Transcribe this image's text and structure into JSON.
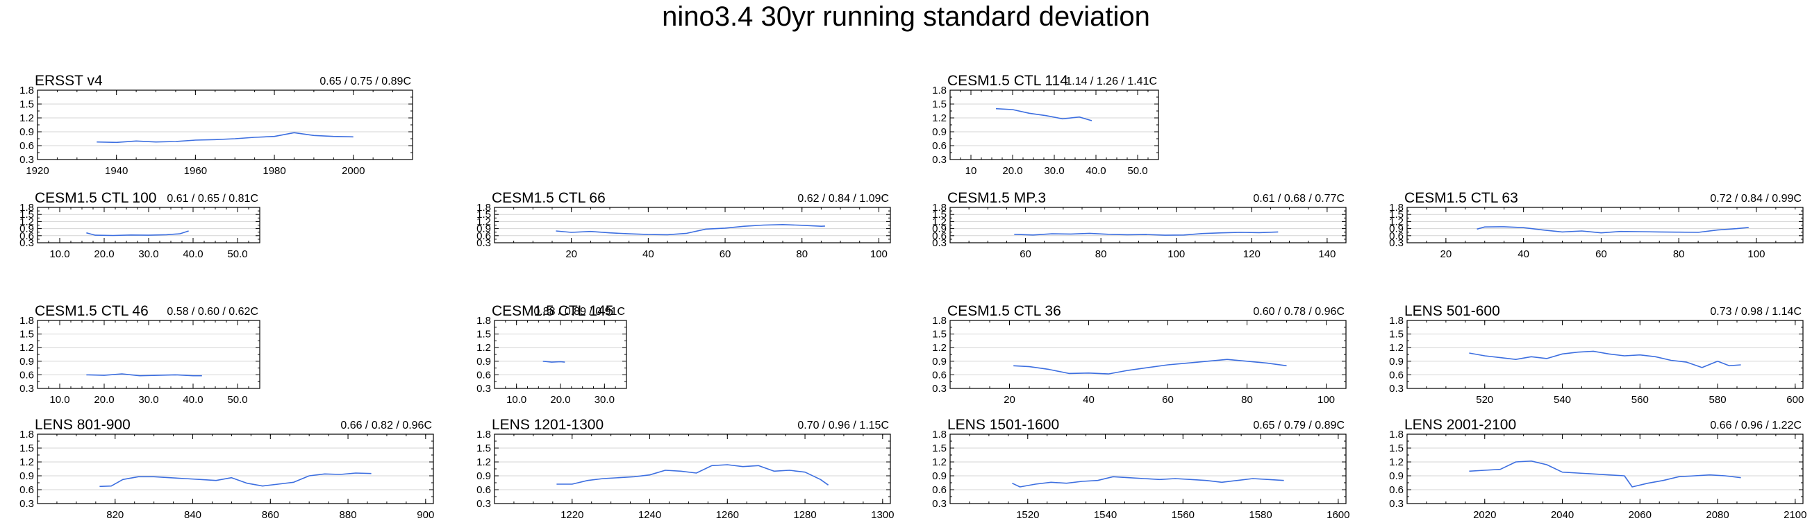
{
  "figure_title": "nino3.4 30yr running standard deviation",
  "colors": {
    "line": "#3d6fe0",
    "axis": "#000000",
    "grid": "#d4d4d4"
  },
  "chart_data": [
    {
      "type": "line",
      "title": "ERSST v4",
      "stats": "0.65 / 0.75 / 0.89C",
      "xlim": [
        1920,
        2015
      ],
      "xticks": [
        1920,
        1940,
        1960,
        1980,
        2000
      ],
      "xtick_labels": [
        "1920",
        "1940",
        "1960",
        "1980",
        "2000"
      ],
      "ylim": [
        0.3,
        1.8
      ],
      "yticks": [
        0.3,
        0.6,
        0.9,
        1.2,
        1.5,
        1.8
      ],
      "ytick_labels": [
        "0.3",
        "0.6",
        "0.9",
        "1.2",
        "1.5",
        "1.8"
      ],
      "x": [
        1935,
        1940,
        1945,
        1950,
        1955,
        1960,
        1965,
        1970,
        1975,
        1980,
        1985,
        1990,
        1995,
        2000
      ],
      "y": [
        0.68,
        0.67,
        0.7,
        0.68,
        0.69,
        0.72,
        0.73,
        0.75,
        0.78,
        0.8,
        0.88,
        0.82,
        0.8,
        0.79
      ]
    },
    {
      "type": "line",
      "title": "CESM1.5 CTL 114",
      "stats": "1.14 / 1.26 / 1.41C",
      "xlim": [
        5,
        55
      ],
      "xticks": [
        10,
        20,
        30,
        40,
        50
      ],
      "xtick_labels": [
        "10",
        "20.0",
        "30.0",
        "40.0",
        "50.0"
      ],
      "ylim": [
        0.3,
        1.8
      ],
      "yticks": [
        0.3,
        0.6,
        0.9,
        1.2,
        1.5,
        1.8
      ],
      "ytick_labels": [
        "0.3",
        "0.6",
        "0.9",
        "1.2",
        "1.5",
        "1.8"
      ],
      "x": [
        16,
        20,
        24,
        28,
        32,
        36,
        39
      ],
      "y": [
        1.4,
        1.38,
        1.3,
        1.25,
        1.18,
        1.22,
        1.14
      ]
    },
    {
      "type": "line",
      "title": "CESM1.5 CTL 100",
      "stats": "0.61 / 0.65 / 0.81C",
      "xlim": [
        5,
        55
      ],
      "xticks": [
        10,
        20,
        30,
        40,
        50
      ],
      "xtick_labels": [
        "10.0",
        "20.0",
        "30.0",
        "40.0",
        "50.0"
      ],
      "ylim": [
        0.3,
        1.8
      ],
      "yticks": [
        0.3,
        0.6,
        0.9,
        1.2,
        1.5,
        1.8
      ],
      "ytick_labels": [
        "0.3",
        "0.6",
        "0.9",
        "1.2",
        "1.5",
        "1.8"
      ],
      "x": [
        16,
        18,
        22,
        26,
        30,
        34,
        37,
        39
      ],
      "y": [
        0.72,
        0.62,
        0.61,
        0.63,
        0.62,
        0.64,
        0.68,
        0.8
      ]
    },
    {
      "type": "line",
      "title": "CESM1.5 CTL 66",
      "stats": "0.62 / 0.84 / 1.09C",
      "xlim": [
        0,
        103
      ],
      "xticks": [
        20,
        40,
        60,
        80,
        100
      ],
      "xtick_labels": [
        "20",
        "40",
        "60",
        "80",
        "100"
      ],
      "ylim": [
        0.3,
        1.8
      ],
      "yticks": [
        0.3,
        0.6,
        0.9,
        1.2,
        1.5,
        1.8
      ],
      "ytick_labels": [
        "0.3",
        "0.6",
        "0.9",
        "1.2",
        "1.5",
        "1.8"
      ],
      "x": [
        16,
        20,
        25,
        30,
        35,
        40,
        45,
        50,
        55,
        60,
        65,
        70,
        75,
        80,
        85,
        86
      ],
      "y": [
        0.8,
        0.74,
        0.78,
        0.72,
        0.68,
        0.65,
        0.64,
        0.7,
        0.88,
        0.92,
        1.0,
        1.05,
        1.07,
        1.04,
        1.0,
        1.01
      ]
    },
    {
      "type": "line",
      "title": "CESM1.5 MP.3",
      "stats": "0.61 / 0.68 / 0.77C",
      "xlim": [
        40,
        145
      ],
      "xticks": [
        60,
        80,
        100,
        120,
        140
      ],
      "xtick_labels": [
        "60",
        "80",
        "100",
        "120",
        "140"
      ],
      "ylim": [
        0.3,
        1.8
      ],
      "yticks": [
        0.3,
        0.6,
        0.9,
        1.2,
        1.5,
        1.8
      ],
      "ytick_labels": [
        "0.3",
        "0.6",
        "0.9",
        "1.2",
        "1.5",
        "1.8"
      ],
      "x": [
        57,
        62,
        67,
        72,
        77,
        82,
        87,
        92,
        97,
        102,
        107,
        112,
        117,
        122,
        127
      ],
      "y": [
        0.66,
        0.63,
        0.68,
        0.67,
        0.7,
        0.66,
        0.64,
        0.65,
        0.62,
        0.63,
        0.69,
        0.72,
        0.74,
        0.73,
        0.76
      ]
    },
    {
      "type": "line",
      "title": "CESM1.5 CTL 63",
      "stats": "0.72 / 0.84 / 0.99C",
      "xlim": [
        10,
        112
      ],
      "xticks": [
        20,
        40,
        60,
        80,
        100
      ],
      "xtick_labels": [
        "20",
        "40",
        "60",
        "80",
        "100"
      ],
      "ylim": [
        0.3,
        1.8
      ],
      "yticks": [
        0.3,
        0.6,
        0.9,
        1.2,
        1.5,
        1.8
      ],
      "ytick_labels": [
        "0.3",
        "0.6",
        "0.9",
        "1.2",
        "1.5",
        "1.8"
      ],
      "x": [
        28,
        30,
        35,
        40,
        45,
        50,
        55,
        60,
        65,
        70,
        75,
        80,
        85,
        90,
        95,
        98
      ],
      "y": [
        0.88,
        0.97,
        0.98,
        0.94,
        0.84,
        0.76,
        0.8,
        0.72,
        0.78,
        0.77,
        0.76,
        0.75,
        0.74,
        0.84,
        0.9,
        0.95
      ]
    },
    {
      "type": "line",
      "title": "CESM1.5 CTL 46",
      "stats": "0.58 / 0.60 / 0.62C",
      "xlim": [
        5,
        55
      ],
      "xticks": [
        10,
        20,
        30,
        40,
        50
      ],
      "xtick_labels": [
        "10.0",
        "20.0",
        "30.0",
        "40.0",
        "50.0"
      ],
      "ylim": [
        0.3,
        1.8
      ],
      "yticks": [
        0.3,
        0.6,
        0.9,
        1.2,
        1.5,
        1.8
      ],
      "ytick_labels": [
        "0.3",
        "0.6",
        "0.9",
        "1.2",
        "1.5",
        "1.8"
      ],
      "x": [
        16,
        20,
        24,
        28,
        32,
        36,
        40,
        42
      ],
      "y": [
        0.6,
        0.59,
        0.62,
        0.58,
        0.59,
        0.6,
        0.58,
        0.58
      ]
    },
    {
      "type": "line",
      "title": "CESM1.5 CTL 145",
      "stats": "0.88 / 0.89 / 0.91C",
      "xlim": [
        5,
        35
      ],
      "xticks": [
        10,
        20,
        30
      ],
      "xtick_labels": [
        "10.0",
        "20.0",
        "30.0"
      ],
      "ylim": [
        0.3,
        1.8
      ],
      "yticks": [
        0.3,
        0.6,
        0.9,
        1.2,
        1.5,
        1.8
      ],
      "ytick_labels": [
        "0.3",
        "0.6",
        "0.9",
        "1.2",
        "1.5",
        "1.8"
      ],
      "x": [
        16,
        18,
        20,
        21
      ],
      "y": [
        0.9,
        0.88,
        0.89,
        0.88
      ]
    },
    {
      "type": "line",
      "title": "CESM1.5 CTL 36",
      "stats": "0.60 / 0.78 / 0.96C",
      "xlim": [
        5,
        105
      ],
      "xticks": [
        20,
        40,
        60,
        80,
        100
      ],
      "xtick_labels": [
        "20",
        "40",
        "60",
        "80",
        "100"
      ],
      "ylim": [
        0.3,
        1.8
      ],
      "yticks": [
        0.3,
        0.6,
        0.9,
        1.2,
        1.5,
        1.8
      ],
      "ytick_labels": [
        "0.3",
        "0.6",
        "0.9",
        "1.2",
        "1.5",
        "1.8"
      ],
      "x": [
        21,
        25,
        30,
        35,
        40,
        45,
        50,
        55,
        60,
        65,
        70,
        75,
        80,
        85,
        90
      ],
      "y": [
        0.8,
        0.78,
        0.72,
        0.63,
        0.64,
        0.62,
        0.7,
        0.76,
        0.82,
        0.86,
        0.9,
        0.94,
        0.9,
        0.86,
        0.8
      ]
    },
    {
      "type": "line",
      "title": "LENS 501-600",
      "stats": "0.73 / 0.98 / 1.14C",
      "xlim": [
        500,
        602
      ],
      "xticks": [
        520,
        540,
        560,
        580,
        600
      ],
      "xtick_labels": [
        "520",
        "540",
        "560",
        "580",
        "600"
      ],
      "ylim": [
        0.3,
        1.8
      ],
      "yticks": [
        0.3,
        0.6,
        0.9,
        1.2,
        1.5,
        1.8
      ],
      "ytick_labels": [
        "0.3",
        "0.6",
        "0.9",
        "1.2",
        "1.5",
        "1.8"
      ],
      "x": [
        516,
        520,
        524,
        528,
        532,
        536,
        540,
        544,
        548,
        552,
        556,
        560,
        564,
        568,
        572,
        576,
        580,
        583,
        586
      ],
      "y": [
        1.08,
        1.02,
        0.98,
        0.94,
        1.0,
        0.96,
        1.06,
        1.1,
        1.12,
        1.06,
        1.02,
        1.04,
        1.0,
        0.92,
        0.88,
        0.76,
        0.9,
        0.8,
        0.82
      ]
    },
    {
      "type": "line",
      "title": "LENS 801-900",
      "stats": "0.66 / 0.82 / 0.96C",
      "xlim": [
        800,
        902
      ],
      "xticks": [
        820,
        840,
        860,
        880,
        900
      ],
      "xtick_labels": [
        "820",
        "840",
        "860",
        "880",
        "900"
      ],
      "ylim": [
        0.3,
        1.8
      ],
      "yticks": [
        0.3,
        0.6,
        0.9,
        1.2,
        1.5,
        1.8
      ],
      "ytick_labels": [
        "0.3",
        "0.6",
        "0.9",
        "1.2",
        "1.5",
        "1.8"
      ],
      "x": [
        816,
        819,
        822,
        826,
        830,
        834,
        838,
        842,
        846,
        850,
        854,
        858,
        862,
        866,
        870,
        874,
        878,
        882,
        886
      ],
      "y": [
        0.67,
        0.68,
        0.82,
        0.88,
        0.88,
        0.86,
        0.84,
        0.82,
        0.8,
        0.86,
        0.74,
        0.68,
        0.72,
        0.76,
        0.9,
        0.94,
        0.93,
        0.96,
        0.95
      ]
    },
    {
      "type": "line",
      "title": "LENS 1201-1300",
      "stats": "0.70 / 0.96 / 1.15C",
      "xlim": [
        1200,
        1302
      ],
      "xticks": [
        1220,
        1240,
        1260,
        1280,
        1300
      ],
      "xtick_labels": [
        "1220",
        "1240",
        "1260",
        "1280",
        "1300"
      ],
      "ylim": [
        0.3,
        1.8
      ],
      "yticks": [
        0.3,
        0.6,
        0.9,
        1.2,
        1.5,
        1.8
      ],
      "ytick_labels": [
        "0.3",
        "0.6",
        "0.9",
        "1.2",
        "1.5",
        "1.8"
      ],
      "x": [
        1216,
        1220,
        1224,
        1228,
        1232,
        1236,
        1240,
        1244,
        1248,
        1252,
        1256,
        1260,
        1264,
        1268,
        1272,
        1276,
        1280,
        1284,
        1286
      ],
      "y": [
        0.72,
        0.72,
        0.8,
        0.84,
        0.86,
        0.88,
        0.92,
        1.02,
        1.0,
        0.96,
        1.12,
        1.14,
        1.1,
        1.12,
        1.0,
        1.02,
        0.98,
        0.82,
        0.7
      ]
    },
    {
      "type": "line",
      "title": "LENS 1501-1600",
      "stats": "0.65 / 0.79 / 0.89C",
      "xlim": [
        1500,
        1602
      ],
      "xticks": [
        1520,
        1540,
        1560,
        1580,
        1600
      ],
      "xtick_labels": [
        "1520",
        "1540",
        "1560",
        "1580",
        "1600"
      ],
      "ylim": [
        0.3,
        1.8
      ],
      "yticks": [
        0.3,
        0.6,
        0.9,
        1.2,
        1.5,
        1.8
      ],
      "ytick_labels": [
        "0.3",
        "0.6",
        "0.9",
        "1.2",
        "1.5",
        "1.8"
      ],
      "x": [
        1516,
        1518,
        1522,
        1526,
        1530,
        1534,
        1538,
        1542,
        1546,
        1550,
        1554,
        1558,
        1562,
        1566,
        1570,
        1574,
        1578,
        1582,
        1586
      ],
      "y": [
        0.74,
        0.66,
        0.72,
        0.76,
        0.74,
        0.78,
        0.8,
        0.88,
        0.86,
        0.84,
        0.82,
        0.84,
        0.82,
        0.8,
        0.76,
        0.8,
        0.84,
        0.82,
        0.8
      ]
    },
    {
      "type": "line",
      "title": "LENS 2001-2100",
      "stats": "0.66 / 0.96 / 1.22C",
      "xlim": [
        2000,
        2102
      ],
      "xticks": [
        2020,
        2040,
        2060,
        2080,
        2100
      ],
      "xtick_labels": [
        "2020",
        "2040",
        "2060",
        "2080",
        "2100"
      ],
      "ylim": [
        0.3,
        1.8
      ],
      "yticks": [
        0.3,
        0.6,
        0.9,
        1.2,
        1.5,
        1.8
      ],
      "ytick_labels": [
        "0.3",
        "0.6",
        "0.9",
        "1.2",
        "1.5",
        "1.8"
      ],
      "x": [
        2016,
        2020,
        2024,
        2028,
        2032,
        2036,
        2040,
        2044,
        2048,
        2052,
        2056,
        2058,
        2062,
        2066,
        2070,
        2074,
        2078,
        2082,
        2086
      ],
      "y": [
        1.0,
        1.02,
        1.04,
        1.2,
        1.22,
        1.14,
        0.98,
        0.96,
        0.94,
        0.92,
        0.9,
        0.66,
        0.74,
        0.8,
        0.88,
        0.9,
        0.92,
        0.9,
        0.86
      ]
    }
  ]
}
